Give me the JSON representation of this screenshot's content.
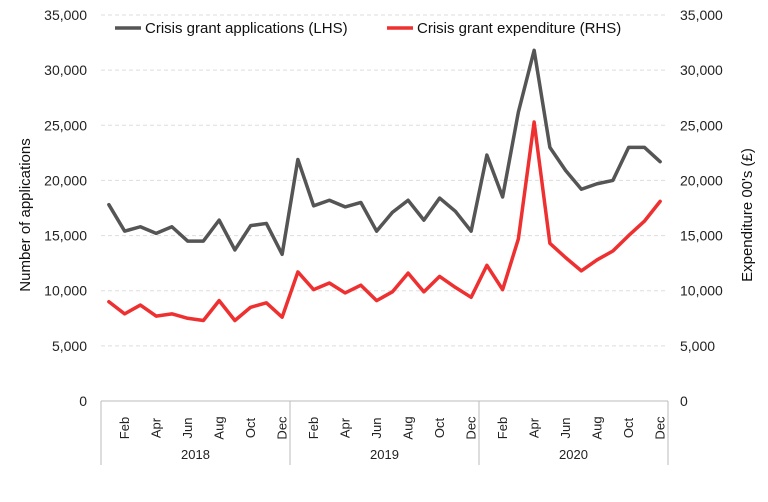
{
  "chart_data": {
    "type": "line",
    "left_axis": {
      "label": "Number of applications",
      "ylim": [
        0,
        35000
      ],
      "ticks": [
        "0",
        "5,000",
        "10,000",
        "15,000",
        "20,000",
        "25,000",
        "30,000",
        "35,000"
      ]
    },
    "right_axis": {
      "label": "Expenditure 00's (£)",
      "ylim": [
        0,
        35000
      ],
      "ticks": [
        "0",
        "5,000",
        "10,000",
        "15,000",
        "20,000",
        "25,000",
        "30,000",
        "35,000"
      ]
    },
    "x_month_labels": [
      "Feb",
      "Apr",
      "Jun",
      "Aug",
      "Oct",
      "Dec",
      "Feb",
      "Apr",
      "Jun",
      "Aug",
      "Oct",
      "Dec",
      "Feb",
      "Apr",
      "Jun",
      "Aug",
      "Oct",
      "Dec"
    ],
    "years": [
      "2018",
      "2019",
      "2020"
    ],
    "grid": true,
    "legend_position": "top",
    "series": [
      {
        "name": "Crisis grant applications (LHS)",
        "axis": "left",
        "color": "#555555",
        "values": [
          17800,
          15400,
          15800,
          15200,
          15800,
          14500,
          14500,
          16400,
          13700,
          15900,
          16100,
          13300,
          21900,
          17700,
          18200,
          17600,
          18000,
          15400,
          17100,
          18200,
          16400,
          18400,
          17200,
          15400,
          22300,
          18500,
          26200,
          31800,
          23000,
          20900,
          19200,
          19700,
          20000,
          23000,
          23000,
          21700
        ]
      },
      {
        "name": "Crisis grant expenditure (RHS)",
        "axis": "right",
        "color": "#ee3030",
        "values": [
          9000,
          7900,
          8700,
          7700,
          7900,
          7500,
          7300,
          9100,
          7300,
          8500,
          8900,
          7600,
          11700,
          10100,
          10700,
          9800,
          10500,
          9100,
          9900,
          11600,
          9900,
          11300,
          10300,
          9400,
          12300,
          10100,
          14700,
          25300,
          14300,
          13000,
          11800,
          12800,
          13600,
          15000,
          16300,
          18100
        ]
      }
    ]
  }
}
